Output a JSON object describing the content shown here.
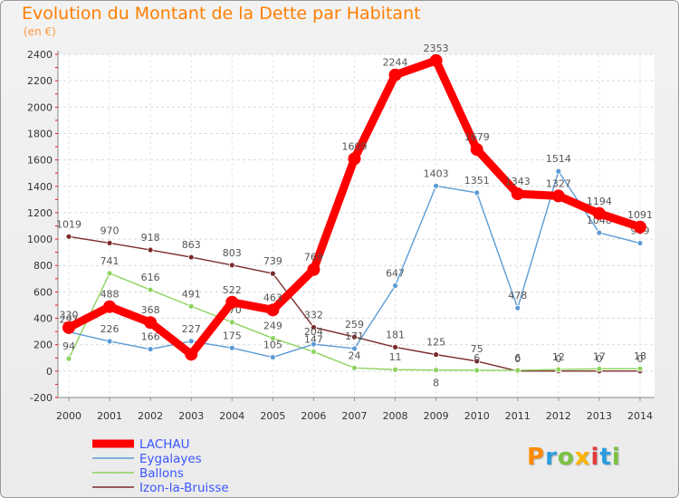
{
  "header": {
    "title": "Evolution du Montant de la Dette par Habitant",
    "unit": "(en €)"
  },
  "logo": {
    "text": "Proxiti",
    "colors": [
      "#ff8a00",
      "#2a9de0",
      "#7cc242",
      "#ffb400",
      "#e23b3b",
      "#2a9de0",
      "#7cc242"
    ]
  },
  "chart_data": {
    "type": "line",
    "title": "Evolution du Montant de la Dette par Habitant",
    "ylabel": "(en €)",
    "xlabel": "",
    "x": [
      "2000",
      "2001",
      "2002",
      "2003",
      "2004",
      "2005",
      "2006",
      "2007",
      "2008",
      "2009",
      "2010",
      "2011",
      "2012",
      "2013",
      "2014"
    ],
    "ylim": [
      -200,
      2400
    ],
    "yticks": [
      -200,
      0,
      200,
      400,
      600,
      800,
      1000,
      1200,
      1400,
      1600,
      1800,
      2000,
      2200,
      2400
    ],
    "grid": "horizontal",
    "legend_position": "bottom-left",
    "series": [
      {
        "name": "Izon-la-Bruisse",
        "color": "#7b2a2a",
        "values": [
          1019,
          970,
          918,
          863,
          803,
          739,
          332,
          259,
          181,
          125,
          75,
          0,
          0,
          0,
          0
        ],
        "labels": [
          "1019",
          "970",
          "918",
          "863",
          "803",
          "739",
          "332",
          "259",
          "181",
          "125",
          "75",
          "0",
          "0",
          "0",
          "0"
        ]
      },
      {
        "name": "Ballons",
        "color": "#8ed35f",
        "values": [
          94,
          741,
          616,
          491,
          370,
          249,
          147,
          24,
          11,
          8,
          6,
          6,
          12,
          17,
          18
        ],
        "labels": [
          "94",
          "741",
          "616",
          "491",
          "370",
          "249",
          "147",
          "24",
          "11",
          "8",
          "6",
          "6",
          "12",
          "17",
          "18"
        ]
      },
      {
        "name": "Eygalayes",
        "color": "#5b9bd5",
        "values": [
          297,
          226,
          166,
          227,
          175,
          105,
          204,
          171,
          647,
          1403,
          1351,
          478,
          1514,
          1048,
          969
        ],
        "labels": [
          "297",
          "226",
          "166",
          "227",
          "175",
          "105",
          "204",
          "171",
          "647",
          "1403",
          "1351",
          "478",
          "1514",
          "1048",
          "969"
        ]
      },
      {
        "name": "LACHAU",
        "color": "#ff0000",
        "values": [
          330,
          488,
          368,
          127,
          522,
          463,
          769,
          1609,
          2244,
          2353,
          1679,
          1343,
          1327,
          1194,
          1091
        ],
        "labels": [
          "330",
          "488",
          "368",
          "",
          "522",
          "463",
          "769",
          "1609",
          "2244",
          "2353",
          "1679",
          "1343",
          "1327",
          "1194",
          "1091"
        ]
      }
    ],
    "legend": [
      "LACHAU",
      "Eygalayes",
      "Ballons",
      "Izon-la-Bruisse"
    ]
  }
}
